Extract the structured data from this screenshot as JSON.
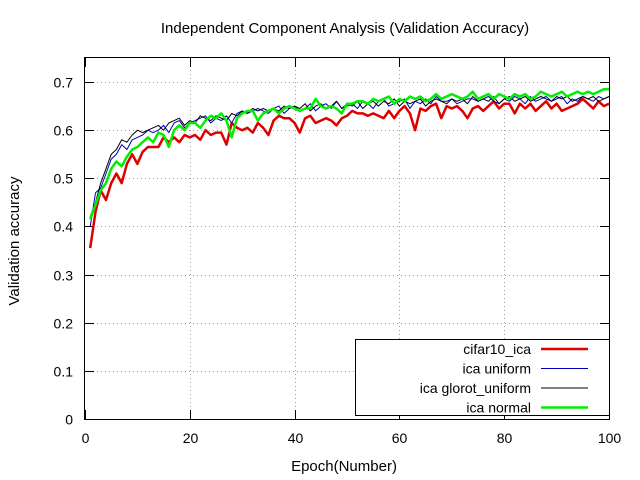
{
  "chart_data": {
    "type": "line",
    "title": "Independent Component Analysis (Validation Accuracy)",
    "xlabel": "Epoch(Number)",
    "ylabel": "Validation accuracy",
    "xlim": [
      0,
      100
    ],
    "ylim": [
      0,
      0.75
    ],
    "xticks": [
      0,
      20,
      40,
      60,
      80,
      100
    ],
    "yticks": [
      0,
      0.1,
      0.2,
      0.3,
      0.4,
      0.5,
      0.6,
      0.7
    ],
    "grid": true,
    "legend_position": "bottom-right",
    "series": [
      {
        "name": "cifar10_ica",
        "color": "#dd0000",
        "x": [
          1,
          2,
          3,
          4,
          5,
          6,
          7,
          8,
          9,
          10,
          11,
          12,
          13,
          14,
          15,
          16,
          17,
          18,
          19,
          20,
          21,
          22,
          23,
          24,
          25,
          26,
          27,
          28,
          29,
          30,
          31,
          32,
          33,
          34,
          35,
          36,
          37,
          38,
          39,
          40,
          41,
          42,
          43,
          44,
          45,
          46,
          47,
          48,
          49,
          50,
          51,
          52,
          53,
          54,
          55,
          56,
          57,
          58,
          59,
          60,
          61,
          62,
          63,
          64,
          65,
          66,
          67,
          68,
          69,
          70,
          71,
          72,
          73,
          74,
          75,
          76,
          77,
          78,
          79,
          80,
          81,
          82,
          83,
          84,
          85,
          86,
          87,
          88,
          89,
          90,
          91,
          92,
          93,
          94,
          95,
          96,
          97,
          98,
          99,
          100
        ],
        "y": [
          0.355,
          0.43,
          0.475,
          0.455,
          0.49,
          0.51,
          0.49,
          0.53,
          0.55,
          0.53,
          0.555,
          0.565,
          0.565,
          0.565,
          0.585,
          0.575,
          0.585,
          0.575,
          0.59,
          0.585,
          0.59,
          0.58,
          0.6,
          0.59,
          0.595,
          0.595,
          0.57,
          0.615,
          0.605,
          0.6,
          0.605,
          0.595,
          0.615,
          0.605,
          0.59,
          0.62,
          0.63,
          0.625,
          0.625,
          0.615,
          0.595,
          0.625,
          0.63,
          0.615,
          0.62,
          0.625,
          0.62,
          0.61,
          0.625,
          0.63,
          0.64,
          0.635,
          0.635,
          0.63,
          0.635,
          0.63,
          0.625,
          0.64,
          0.625,
          0.64,
          0.65,
          0.635,
          0.6,
          0.645,
          0.64,
          0.65,
          0.655,
          0.625,
          0.65,
          0.645,
          0.65,
          0.64,
          0.625,
          0.645,
          0.65,
          0.64,
          0.65,
          0.66,
          0.645,
          0.655,
          0.655,
          0.635,
          0.655,
          0.645,
          0.655,
          0.64,
          0.65,
          0.66,
          0.645,
          0.655,
          0.64,
          0.645,
          0.65,
          0.655,
          0.665,
          0.655,
          0.645,
          0.66,
          0.65,
          0.655
        ]
      },
      {
        "name": "ica uniform",
        "color": "#0000bb",
        "x": [
          1,
          2,
          3,
          4,
          5,
          6,
          7,
          8,
          9,
          10,
          11,
          12,
          13,
          14,
          15,
          16,
          17,
          18,
          19,
          20,
          21,
          22,
          23,
          24,
          25,
          26,
          27,
          28,
          29,
          30,
          31,
          32,
          33,
          34,
          35,
          36,
          37,
          38,
          39,
          40,
          41,
          42,
          43,
          44,
          45,
          46,
          47,
          48,
          49,
          50,
          51,
          52,
          53,
          54,
          55,
          56,
          57,
          58,
          59,
          60,
          61,
          62,
          63,
          64,
          65,
          66,
          67,
          68,
          69,
          70,
          71,
          72,
          73,
          74,
          75,
          76,
          77,
          78,
          79,
          80,
          81,
          82,
          83,
          84,
          85,
          86,
          87,
          88,
          89,
          90,
          91,
          92,
          93,
          94,
          95,
          96,
          97,
          98,
          99,
          100
        ],
        "y": [
          0.4,
          0.47,
          0.48,
          0.51,
          0.54,
          0.55,
          0.57,
          0.56,
          0.58,
          0.585,
          0.59,
          0.6,
          0.595,
          0.6,
          0.61,
          0.595,
          0.615,
          0.62,
          0.605,
          0.615,
          0.62,
          0.625,
          0.63,
          0.615,
          0.625,
          0.62,
          0.63,
          0.615,
          0.635,
          0.64,
          0.635,
          0.64,
          0.645,
          0.64,
          0.635,
          0.645,
          0.65,
          0.635,
          0.645,
          0.65,
          0.64,
          0.645,
          0.655,
          0.64,
          0.65,
          0.655,
          0.645,
          0.66,
          0.645,
          0.65,
          0.655,
          0.645,
          0.66,
          0.655,
          0.645,
          0.66,
          0.665,
          0.65,
          0.655,
          0.66,
          0.665,
          0.645,
          0.66,
          0.655,
          0.665,
          0.655,
          0.67,
          0.66,
          0.66,
          0.665,
          0.655,
          0.66,
          0.665,
          0.665,
          0.66,
          0.665,
          0.67,
          0.66,
          0.655,
          0.665,
          0.66,
          0.67,
          0.665,
          0.655,
          0.67,
          0.66,
          0.665,
          0.67,
          0.66,
          0.665,
          0.67,
          0.655,
          0.665,
          0.66,
          0.67,
          0.665,
          0.66,
          0.67,
          0.665,
          0.67
        ]
      },
      {
        "name": "ica glorot_uniform",
        "color": "#000000",
        "x": [
          1,
          2,
          3,
          4,
          5,
          6,
          7,
          8,
          9,
          10,
          11,
          12,
          13,
          14,
          15,
          16,
          17,
          18,
          19,
          20,
          21,
          22,
          23,
          24,
          25,
          26,
          27,
          28,
          29,
          30,
          31,
          32,
          33,
          34,
          35,
          36,
          37,
          38,
          39,
          40,
          41,
          42,
          43,
          44,
          45,
          46,
          47,
          48,
          49,
          50,
          51,
          52,
          53,
          54,
          55,
          56,
          57,
          58,
          59,
          60,
          61,
          62,
          63,
          64,
          65,
          66,
          67,
          68,
          69,
          70,
          71,
          72,
          73,
          74,
          75,
          76,
          77,
          78,
          79,
          80,
          81,
          82,
          83,
          84,
          85,
          86,
          87,
          88,
          89,
          90,
          91,
          92,
          93,
          94,
          95,
          96,
          97,
          98,
          99,
          100
        ],
        "y": [
          0.42,
          0.45,
          0.49,
          0.52,
          0.55,
          0.56,
          0.58,
          0.575,
          0.59,
          0.6,
          0.595,
          0.6,
          0.605,
          0.61,
          0.6,
          0.615,
          0.62,
          0.625,
          0.61,
          0.62,
          0.615,
          0.63,
          0.625,
          0.62,
          0.63,
          0.625,
          0.62,
          0.635,
          0.63,
          0.64,
          0.635,
          0.645,
          0.64,
          0.645,
          0.64,
          0.645,
          0.64,
          0.65,
          0.645,
          0.65,
          0.645,
          0.655,
          0.64,
          0.65,
          0.655,
          0.645,
          0.65,
          0.66,
          0.645,
          0.655,
          0.65,
          0.66,
          0.645,
          0.655,
          0.66,
          0.65,
          0.66,
          0.655,
          0.665,
          0.65,
          0.66,
          0.655,
          0.66,
          0.665,
          0.65,
          0.66,
          0.665,
          0.66,
          0.655,
          0.665,
          0.66,
          0.665,
          0.655,
          0.67,
          0.66,
          0.665,
          0.66,
          0.67,
          0.655,
          0.665,
          0.67,
          0.66,
          0.665,
          0.67,
          0.66,
          0.665,
          0.67,
          0.665,
          0.66,
          0.67,
          0.665,
          0.67,
          0.66,
          0.665,
          0.67,
          0.665,
          0.67,
          0.66,
          0.665,
          0.67
        ]
      },
      {
        "name": "ica normal",
        "color": "#00ee00",
        "x": [
          1,
          2,
          3,
          4,
          5,
          6,
          7,
          8,
          9,
          10,
          11,
          12,
          13,
          14,
          15,
          16,
          17,
          18,
          19,
          20,
          21,
          22,
          23,
          24,
          25,
          26,
          27,
          28,
          29,
          30,
          31,
          32,
          33,
          34,
          35,
          36,
          37,
          38,
          39,
          40,
          41,
          42,
          43,
          44,
          45,
          46,
          47,
          48,
          49,
          50,
          51,
          52,
          53,
          54,
          55,
          56,
          57,
          58,
          59,
          60,
          61,
          62,
          63,
          64,
          65,
          66,
          67,
          68,
          69,
          70,
          71,
          72,
          73,
          74,
          75,
          76,
          77,
          78,
          79,
          80,
          81,
          82,
          83,
          84,
          85,
          86,
          87,
          88,
          89,
          90,
          91,
          92,
          93,
          94,
          95,
          96,
          97,
          98,
          99,
          100
        ],
        "y": [
          0.415,
          0.445,
          0.475,
          0.49,
          0.52,
          0.535,
          0.525,
          0.545,
          0.56,
          0.565,
          0.575,
          0.585,
          0.575,
          0.595,
          0.59,
          0.565,
          0.6,
          0.61,
          0.6,
          0.615,
          0.615,
          0.605,
          0.62,
          0.63,
          0.625,
          0.635,
          0.62,
          0.585,
          0.625,
          0.635,
          0.64,
          0.64,
          0.62,
          0.635,
          0.64,
          0.645,
          0.635,
          0.645,
          0.65,
          0.645,
          0.64,
          0.645,
          0.645,
          0.665,
          0.65,
          0.645,
          0.65,
          0.645,
          0.635,
          0.655,
          0.655,
          0.66,
          0.66,
          0.655,
          0.665,
          0.66,
          0.665,
          0.67,
          0.655,
          0.665,
          0.66,
          0.67,
          0.665,
          0.67,
          0.66,
          0.665,
          0.675,
          0.665,
          0.67,
          0.675,
          0.67,
          0.665,
          0.67,
          0.68,
          0.665,
          0.67,
          0.675,
          0.665,
          0.675,
          0.67,
          0.665,
          0.675,
          0.67,
          0.675,
          0.665,
          0.67,
          0.68,
          0.675,
          0.67,
          0.675,
          0.68,
          0.67,
          0.675,
          0.68,
          0.675,
          0.68,
          0.675,
          0.68,
          0.685,
          0.685
        ]
      }
    ]
  }
}
